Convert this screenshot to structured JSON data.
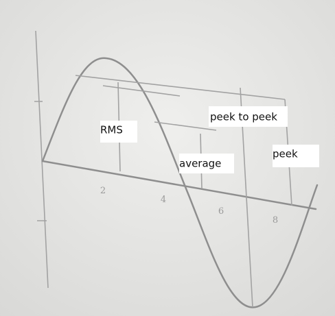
{
  "labels": {
    "rms": "RMS",
    "average": "average",
    "peak_to_peak": "peek to peek",
    "peak": "peek"
  },
  "axis_ticks": [
    "2",
    "4",
    "6",
    "8"
  ]
}
